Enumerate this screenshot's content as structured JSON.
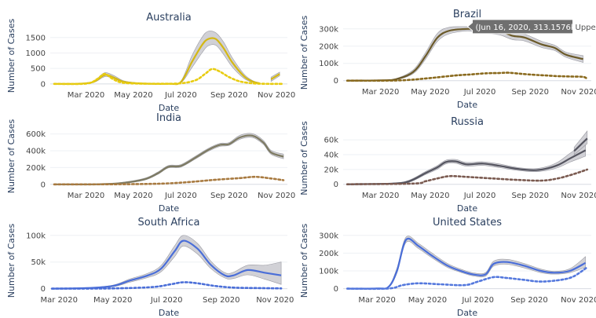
{
  "chart_data": [
    {
      "type": "line",
      "title": "Australia",
      "xlabel": "Date",
      "ylabel": "Number of Cases",
      "xlim": [
        "2020-01-15",
        "2020-11-15"
      ],
      "ylim": [
        -80,
        1900
      ],
      "y_ticks": [
        0,
        500,
        1000,
        1500
      ],
      "y_tick_labels": [
        "0",
        "500",
        "1000",
        "1500"
      ],
      "x_ticks": [
        "2020-03-01",
        "2020-05-01",
        "2020-07-01",
        "2020-09-01",
        "2020-11-01"
      ],
      "x_tick_labels": [
        "Mar 2020",
        "May 2020",
        "Jul 2020",
        "Sep 2020",
        "Nov 2020"
      ],
      "line_color": "#d4b814",
      "dot_color": "#e8cc10",
      "band_color": "#c9c9cf",
      "x": [
        "2020-01-20",
        "2020-02-20",
        "2020-03-10",
        "2020-03-22",
        "2020-03-28",
        "2020-04-08",
        "2020-04-20",
        "2020-05-15",
        "2020-06-15",
        "2020-07-01",
        "2020-07-15",
        "2020-07-28",
        "2020-08-05",
        "2020-08-15",
        "2020-08-25",
        "2020-09-05",
        "2020-09-20",
        "2020-10-01",
        "2020-10-10",
        "2020-10-20",
        "2020-10-25",
        "2020-11-05"
      ],
      "values": [
        0,
        5,
        60,
        250,
        290,
        180,
        60,
        10,
        5,
        60,
        700,
        1250,
        1450,
        1450,
        1150,
        700,
        250,
        80,
        20,
        null,
        150,
        320
      ],
      "upper": [
        0,
        10,
        80,
        320,
        360,
        240,
        90,
        20,
        15,
        90,
        900,
        1500,
        1700,
        1650,
        1350,
        850,
        320,
        110,
        40,
        null,
        220,
        380
      ],
      "lower": [
        0,
        0,
        40,
        200,
        240,
        140,
        40,
        5,
        0,
        30,
        520,
        1000,
        1230,
        1250,
        950,
        550,
        180,
        50,
        5,
        null,
        80,
        260
      ],
      "daily_x": [
        "2020-01-20",
        "2020-03-01",
        "2020-03-15",
        "2020-03-25",
        "2020-04-05",
        "2020-04-20",
        "2020-06-01",
        "2020-07-01",
        "2020-07-20",
        "2020-08-01",
        "2020-08-10",
        "2020-08-20",
        "2020-09-01",
        "2020-09-15",
        "2020-10-01",
        "2020-10-15",
        "2020-11-10"
      ],
      "daily": [
        0,
        10,
        150,
        320,
        150,
        30,
        5,
        20,
        120,
        320,
        480,
        400,
        220,
        80,
        20,
        5,
        0
      ]
    },
    {
      "type": "line",
      "title": "Brazil",
      "xlabel": "Date",
      "ylabel": "Number of Cases",
      "xlim": [
        "2020-01-15",
        "2020-11-15"
      ],
      "ylim": [
        -15000,
        340000
      ],
      "y_ticks": [
        0,
        100000,
        200000,
        300000
      ],
      "y_tick_labels": [
        "0",
        "100k",
        "200k",
        "300k"
      ],
      "x_ticks": [
        "2020-03-01",
        "2020-05-01",
        "2020-07-01",
        "2020-09-01",
        "2020-11-01"
      ],
      "x_tick_labels": [
        "Mar 2020",
        "May 2020",
        "Jul 2020",
        "Sep 2020",
        "Nov 2020"
      ],
      "line_color": "#6b5a2a",
      "dot_color": "#8a6a1e",
      "band_color": "#c9c9cf",
      "x": [
        "2020-01-20",
        "2020-03-01",
        "2020-03-20",
        "2020-04-10",
        "2020-04-25",
        "2020-05-10",
        "2020-05-25",
        "2020-06-16",
        "2020-07-05",
        "2020-07-25",
        "2020-08-10",
        "2020-08-25",
        "2020-09-15",
        "2020-10-01",
        "2020-10-15",
        "2020-11-05"
      ],
      "values": [
        0,
        2000,
        8000,
        50000,
        140000,
        250000,
        290000,
        300000,
        298000,
        290000,
        260000,
        250000,
        210000,
        190000,
        150000,
        125000
      ],
      "upper": [
        0,
        3000,
        12000,
        62000,
        160000,
        275000,
        310000,
        313157,
        322000,
        315000,
        282000,
        270000,
        228000,
        205000,
        165000,
        145000
      ],
      "lower": [
        0,
        1000,
        5000,
        40000,
        122000,
        228000,
        272000,
        288000,
        276000,
        266000,
        238000,
        230000,
        192000,
        175000,
        135000,
        105000
      ],
      "daily_x": [
        "2020-01-20",
        "2020-03-01",
        "2020-04-01",
        "2020-05-01",
        "2020-06-01",
        "2020-06-20",
        "2020-07-10",
        "2020-07-25",
        "2020-08-05",
        "2020-08-20",
        "2020-09-05",
        "2020-09-20",
        "2020-10-05",
        "2020-10-20",
        "2020-11-05",
        "2020-11-10"
      ],
      "daily": [
        0,
        0,
        3000,
        15000,
        30000,
        36000,
        43000,
        44000,
        46000,
        40000,
        34000,
        30000,
        26000,
        24000,
        22000,
        10000
      ]
    },
    {
      "type": "line",
      "title": "India",
      "xlabel": "Date",
      "ylabel": "Number of Cases",
      "xlim": [
        "2020-01-15",
        "2020-11-15"
      ],
      "ylim": [
        -30000,
        700000
      ],
      "y_ticks": [
        0,
        200000,
        400000,
        600000
      ],
      "y_tick_labels": [
        "0",
        "200k",
        "400k",
        "600k"
      ],
      "x_ticks": [
        "2020-03-01",
        "2020-05-01",
        "2020-07-01",
        "2020-09-01",
        "2020-11-01"
      ],
      "x_tick_labels": [
        "Mar 2020",
        "May 2020",
        "Jul 2020",
        "Sep 2020",
        "Nov 2020"
      ],
      "line_color": "#7d7a62",
      "dot_color": "#a87a40",
      "band_color": "#c9c9cf",
      "x": [
        "2020-01-20",
        "2020-03-15",
        "2020-04-15",
        "2020-05-15",
        "2020-06-01",
        "2020-06-15",
        "2020-07-01",
        "2020-07-20",
        "2020-08-05",
        "2020-08-20",
        "2020-09-01",
        "2020-09-15",
        "2020-10-01",
        "2020-10-15",
        "2020-10-25",
        "2020-11-10"
      ],
      "values": [
        0,
        1000,
        15000,
        60000,
        130000,
        210000,
        220000,
        320000,
        410000,
        470000,
        480000,
        560000,
        580000,
        500000,
        380000,
        330000
      ],
      "upper": [
        0,
        2000,
        22000,
        72000,
        145000,
        225000,
        236000,
        338000,
        428000,
        488000,
        498000,
        585000,
        605000,
        525000,
        405000,
        360000
      ],
      "lower": [
        0,
        500,
        9000,
        50000,
        118000,
        196000,
        206000,
        304000,
        392000,
        452000,
        464000,
        538000,
        558000,
        478000,
        358000,
        305000
      ],
      "daily_x": [
        "2020-01-20",
        "2020-04-01",
        "2020-05-15",
        "2020-06-15",
        "2020-07-15",
        "2020-08-15",
        "2020-09-15",
        "2020-10-05",
        "2020-10-25",
        "2020-11-10"
      ],
      "daily": [
        0,
        1000,
        5000,
        12000,
        30000,
        55000,
        75000,
        90000,
        70000,
        50000
      ]
    },
    {
      "type": "line",
      "title": "Russia",
      "xlabel": "Date",
      "ylabel": "Number of Cases",
      "xlim": [
        "2020-01-15",
        "2020-11-15"
      ],
      "ylim": [
        -3500,
        74000
      ],
      "y_ticks": [
        0,
        20000,
        40000,
        60000
      ],
      "y_tick_labels": [
        "0",
        "20k",
        "40k",
        "60k"
      ],
      "x_ticks": [
        "2020-03-01",
        "2020-05-01",
        "2020-07-01",
        "2020-09-01",
        "2020-11-01"
      ],
      "x_tick_labels": [
        "Mar 2020",
        "May 2020",
        "Jul 2020",
        "Sep 2020",
        "Nov 2020"
      ],
      "line_color": "#555560",
      "dot_color": "#7a5a50",
      "band_color": "#c9c9cf",
      "x": [
        "2020-01-20",
        "2020-03-15",
        "2020-04-05",
        "2020-04-25",
        "2020-05-10",
        "2020-05-20",
        "2020-06-01",
        "2020-06-15",
        "2020-07-05",
        "2020-07-25",
        "2020-08-15",
        "2020-09-05",
        "2020-09-20",
        "2020-10-05",
        "2020-10-20",
        "2020-11-08"
      ],
      "values": [
        0,
        1000,
        4000,
        15000,
        23000,
        30000,
        31000,
        27000,
        28000,
        25000,
        21000,
        19000,
        21000,
        26000,
        35000,
        46000
      ],
      "upper": [
        0,
        1500,
        5500,
        17000,
        25500,
        32500,
        33500,
        29500,
        30500,
        27500,
        23000,
        21000,
        23500,
        30000,
        42000,
        56000
      ],
      "lower": [
        0,
        500,
        2800,
        13000,
        20500,
        27500,
        28500,
        24500,
        25500,
        22500,
        19000,
        17000,
        18500,
        22500,
        30000,
        38000
      ],
      "extra_x": [
        "2020-10-25",
        "2020-11-10"
      ],
      "extra_values": [
        45000,
        62000
      ],
      "extra_upper": [
        50000,
        72000
      ],
      "extra_lower": [
        40000,
        55000
      ],
      "daily_x": [
        "2020-01-20",
        "2020-04-10",
        "2020-04-25",
        "2020-05-10",
        "2020-05-25",
        "2020-06-15",
        "2020-07-15",
        "2020-08-15",
        "2020-09-15",
        "2020-10-05",
        "2020-10-25",
        "2020-11-10"
      ],
      "daily": [
        0,
        1000,
        4000,
        8000,
        11000,
        10000,
        8000,
        6000,
        5000,
        8000,
        14000,
        20000
      ]
    },
    {
      "type": "line",
      "title": "South Africa",
      "xlabel": "Date",
      "ylabel": "Number of Cases",
      "xlim": [
        "2020-02-20",
        "2020-11-15"
      ],
      "ylim": [
        -5000,
        110000
      ],
      "y_ticks": [
        0,
        50000,
        100000
      ],
      "y_tick_labels": [
        "0",
        "50k",
        "100k"
      ],
      "x_ticks": [
        "2020-03-01",
        "2020-05-01",
        "2020-07-01",
        "2020-09-01",
        "2020-11-01"
      ],
      "x_tick_labels": [
        "Mar 2020",
        "May 2020",
        "Jul 2020",
        "Sep 2020",
        "Nov 2020"
      ],
      "line_color": "#4a6ed8",
      "dot_color": "#4a6ed8",
      "band_color": "#c9c9cf",
      "x": [
        "2020-02-22",
        "2020-04-01",
        "2020-05-01",
        "2020-05-20",
        "2020-06-10",
        "2020-06-25",
        "2020-07-10",
        "2020-07-20",
        "2020-08-05",
        "2020-08-20",
        "2020-09-05",
        "2020-09-15",
        "2020-10-01",
        "2020-10-20",
        "2020-11-08"
      ],
      "values": [
        0,
        1000,
        5000,
        15000,
        25000,
        38000,
        70000,
        90000,
        75000,
        45000,
        25000,
        25000,
        35000,
        30000,
        25000
      ],
      "upper": [
        0,
        1500,
        6500,
        18000,
        29000,
        44000,
        80000,
        100000,
        85000,
        52000,
        30000,
        31000,
        44000,
        44000,
        50000
      ],
      "lower": [
        0,
        500,
        3500,
        12000,
        21000,
        32000,
        60000,
        80000,
        65000,
        38000,
        20000,
        19000,
        26000,
        18000,
        8000
      ],
      "daily_x": [
        "2020-02-22",
        "2020-05-01",
        "2020-06-15",
        "2020-07-05",
        "2020-07-20",
        "2020-08-05",
        "2020-08-25",
        "2020-09-15",
        "2020-10-15",
        "2020-11-08"
      ],
      "daily": [
        0,
        500,
        3000,
        8000,
        12000,
        10000,
        5000,
        2000,
        1000,
        500
      ]
    },
    {
      "type": "line",
      "title": "United States",
      "xlabel": "Date",
      "ylabel": "Number of Cases",
      "xlim": [
        "2020-01-20",
        "2020-11-15"
      ],
      "ylim": [
        -15000,
        330000
      ],
      "y_ticks": [
        0,
        100000,
        200000,
        300000
      ],
      "y_tick_labels": [
        "0",
        "100k",
        "200k",
        "300k"
      ],
      "x_ticks": [
        "2020-03-01",
        "2020-05-01",
        "2020-07-01",
        "2020-09-01",
        "2020-11-01"
      ],
      "x_tick_labels": [
        "Mar 2020",
        "May 2020",
        "Jul 2020",
        "Sep 2020",
        "Nov 2020"
      ],
      "line_color": "#4a6ed8",
      "dot_color": "#5478dd",
      "band_color": "#c9c9cf",
      "x": [
        "2020-01-25",
        "2020-03-01",
        "2020-03-15",
        "2020-03-25",
        "2020-04-05",
        "2020-04-20",
        "2020-05-05",
        "2020-05-25",
        "2020-06-10",
        "2020-06-25",
        "2020-07-10",
        "2020-07-20",
        "2020-08-05",
        "2020-08-25",
        "2020-09-15",
        "2020-10-01",
        "2020-10-20",
        "2020-11-08"
      ],
      "values": [
        0,
        1000,
        10000,
        100000,
        275000,
        240000,
        190000,
        130000,
        100000,
        80000,
        80000,
        140000,
        150000,
        130000,
        100000,
        90000,
        100000,
        145000
      ],
      "upper": [
        0,
        1500,
        14000,
        115000,
        290000,
        255000,
        205000,
        142000,
        110000,
        89000,
        90000,
        155000,
        165000,
        143000,
        110000,
        98000,
        112000,
        180000
      ],
      "lower": [
        0,
        500,
        7000,
        88000,
        260000,
        226000,
        178000,
        120000,
        92000,
        72000,
        70000,
        127000,
        137000,
        118000,
        90000,
        82000,
        90000,
        120000
      ],
      "daily_x": [
        "2020-01-25",
        "2020-03-15",
        "2020-04-01",
        "2020-04-20",
        "2020-05-15",
        "2020-06-15",
        "2020-07-01",
        "2020-07-20",
        "2020-08-05",
        "2020-08-25",
        "2020-09-15",
        "2020-10-10",
        "2020-10-25",
        "2020-11-10"
      ],
      "daily": [
        0,
        1000,
        20000,
        30000,
        25000,
        20000,
        40000,
        65000,
        60000,
        50000,
        40000,
        50000,
        70000,
        120000
      ]
    }
  ],
  "tooltip": {
    "text": "(Jun 16, 2020, 313.1576k)",
    "label": "Upper",
    "panel": 1,
    "x": "2020-06-16",
    "y": 313157
  }
}
